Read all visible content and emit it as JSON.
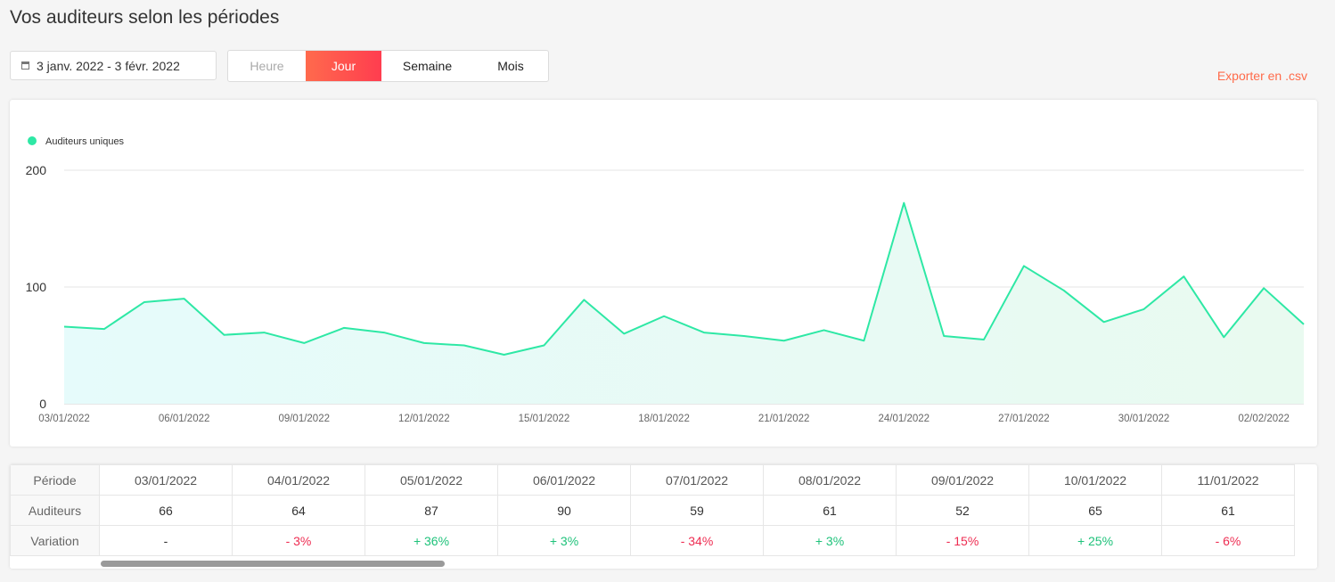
{
  "page": {
    "title": "Vos auditeurs selon les périodes"
  },
  "filters": {
    "date_range": "3 janv. 2022 - 3 févr. 2022",
    "periods": [
      {
        "label": "Heure",
        "state": "disabled"
      },
      {
        "label": "Jour",
        "state": "active"
      },
      {
        "label": "Semaine",
        "state": "normal"
      },
      {
        "label": "Mois",
        "state": "normal"
      }
    ],
    "export_label": "Exporter en .csv"
  },
  "chart_data": {
    "type": "area",
    "series": [
      {
        "name": "Auditeurs uniques",
        "color": "#2ee8a5",
        "values": [
          66,
          64,
          87,
          90,
          59,
          61,
          52,
          65,
          61,
          52,
          50,
          42,
          50,
          89,
          60,
          75,
          61,
          58,
          54,
          63,
          54,
          172,
          58,
          55,
          118,
          97,
          70,
          81,
          109,
          57,
          99,
          68
        ]
      }
    ],
    "x": [
      "03/01/2022",
      "04/01/2022",
      "05/01/2022",
      "06/01/2022",
      "07/01/2022",
      "08/01/2022",
      "09/01/2022",
      "10/01/2022",
      "11/01/2022",
      "12/01/2022",
      "13/01/2022",
      "14/01/2022",
      "15/01/2022",
      "16/01/2022",
      "17/01/2022",
      "18/01/2022",
      "19/01/2022",
      "20/01/2022",
      "21/01/2022",
      "22/01/2022",
      "23/01/2022",
      "24/01/2022",
      "25/01/2022",
      "26/01/2022",
      "27/01/2022",
      "28/01/2022",
      "29/01/2022",
      "30/01/2022",
      "31/01/2022",
      "01/02/2022",
      "02/02/2022",
      "03/02/2022"
    ],
    "x_tick_labels": [
      "03/01/2022",
      "06/01/2022",
      "09/01/2022",
      "12/01/2022",
      "15/01/2022",
      "18/01/2022",
      "21/01/2022",
      "24/01/2022",
      "27/01/2022",
      "30/01/2022",
      "02/02/2022"
    ],
    "y_ticks": [
      "0",
      "100",
      "200"
    ],
    "ylim": [
      0,
      200
    ],
    "grid": true,
    "legend_position": "top-left"
  },
  "table": {
    "row_headers": [
      "Période",
      "Auditeurs",
      "Variation"
    ],
    "columns": [
      {
        "period": "03/01/2022",
        "listeners": "66",
        "variation": "-",
        "trend": "neutral"
      },
      {
        "period": "04/01/2022",
        "listeners": "64",
        "variation": "- 3%",
        "trend": "neg"
      },
      {
        "period": "05/01/2022",
        "listeners": "87",
        "variation": "+ 36%",
        "trend": "pos"
      },
      {
        "period": "06/01/2022",
        "listeners": "90",
        "variation": "+ 3%",
        "trend": "pos"
      },
      {
        "period": "07/01/2022",
        "listeners": "59",
        "variation": "- 34%",
        "trend": "neg"
      },
      {
        "period": "08/01/2022",
        "listeners": "61",
        "variation": "+ 3%",
        "trend": "pos"
      },
      {
        "period": "09/01/2022",
        "listeners": "52",
        "variation": "- 15%",
        "trend": "neg"
      },
      {
        "period": "10/01/2022",
        "listeners": "65",
        "variation": "+ 25%",
        "trend": "pos"
      },
      {
        "period": "11/01/2022",
        "listeners": "61",
        "variation": "- 6%",
        "trend": "neg"
      }
    ],
    "scroll_position": 0.27
  }
}
